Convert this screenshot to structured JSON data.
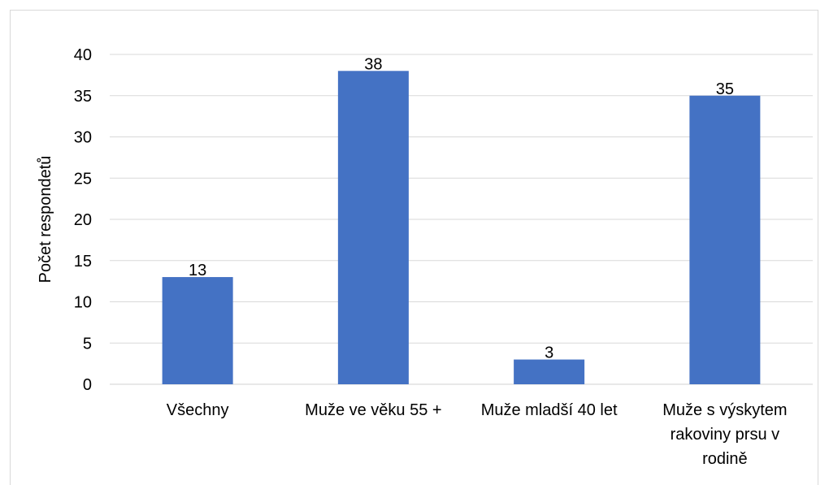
{
  "chart_data": {
    "type": "bar",
    "title": "",
    "xlabel": "",
    "ylabel": "Počet respondetů",
    "ylim": [
      0,
      40
    ],
    "yticks": [
      0,
      5,
      10,
      15,
      20,
      25,
      30,
      35,
      40
    ],
    "grid": true,
    "legend": "none",
    "categories": [
      [
        "Všechny"
      ],
      [
        "Muže ve věku 55 +"
      ],
      [
        "Muže mladší 40 let"
      ],
      [
        "Muže s výskytem",
        "rakoviny prsu v",
        "rodině"
      ]
    ],
    "values": [
      13,
      38,
      3,
      35
    ],
    "data_labels": [
      "13",
      "38",
      "3",
      "35"
    ],
    "bar_color": "#4472c4",
    "grid_color": "#d9d9d9"
  }
}
